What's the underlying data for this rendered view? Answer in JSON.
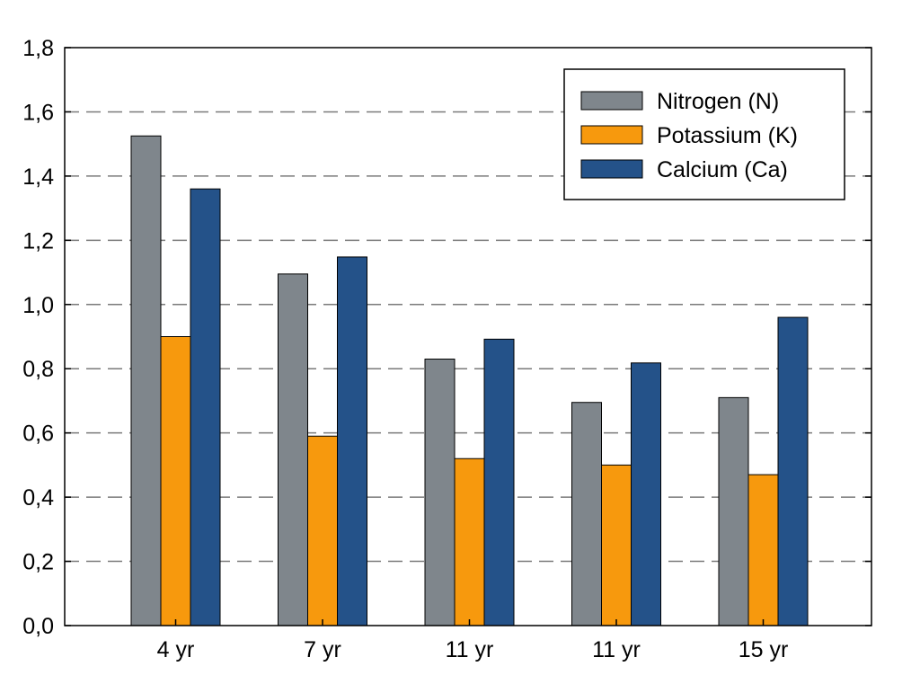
{
  "chart_data": {
    "type": "bar",
    "categories": [
      "4 yr",
      "7 yr",
      "11 yr",
      "11 yr",
      "15 yr"
    ],
    "series": [
      {
        "name": "Nitrogen (N)",
        "values": [
          1.525,
          1.095,
          0.83,
          0.695,
          0.71
        ],
        "color": "#7f868c"
      },
      {
        "name": "Potassium (K)",
        "values": [
          0.9,
          0.59,
          0.52,
          0.5,
          0.47
        ],
        "color": "#f7990d"
      },
      {
        "name": "Calcium (Ca)",
        "values": [
          1.36,
          1.148,
          0.892,
          0.818,
          0.96
        ],
        "color": "#245289"
      }
    ],
    "y_ticks": [
      "0,0",
      "0,2",
      "0,4",
      "0,6",
      "0,8",
      "1,0",
      "1,2",
      "1,4",
      "1,6",
      "1,8"
    ],
    "ylim": [
      0,
      1.8
    ],
    "title": "",
    "xlabel": "",
    "ylabel": "",
    "grid": "horizontal-dashed",
    "legend_position": "top-right"
  }
}
